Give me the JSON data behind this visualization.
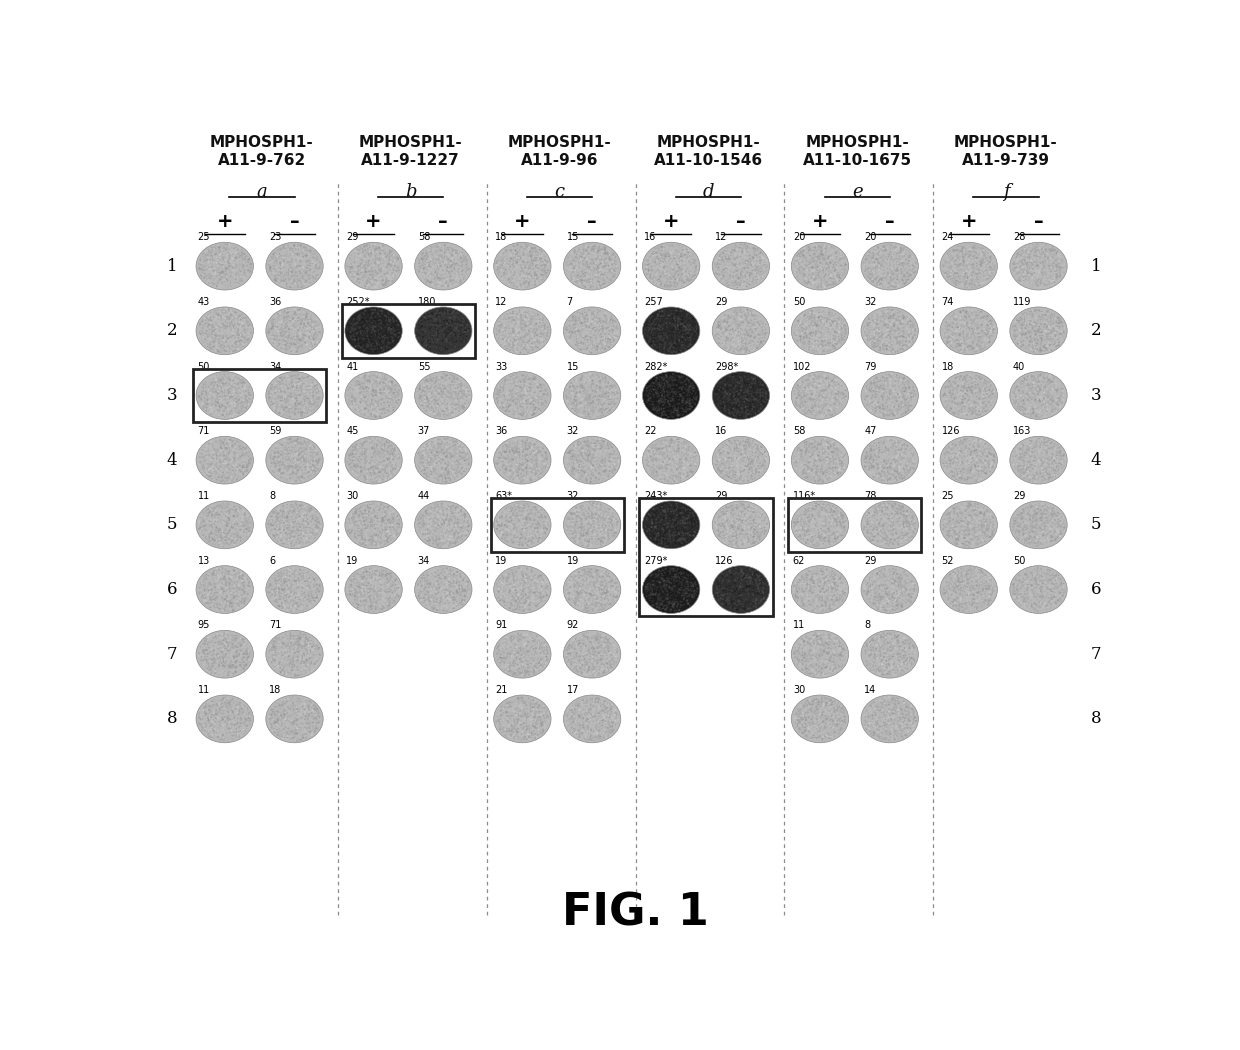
{
  "title": "FIG. 1",
  "columns": [
    {
      "label": "MPHOSPH1-\nA11-9-762",
      "sublabel": "a"
    },
    {
      "label": "MPHOSPH1-\nA11-9-1227",
      "sublabel": "b"
    },
    {
      "label": "MPHOSPH1-\nA11-9-96",
      "sublabel": "c"
    },
    {
      "label": "MPHOSPH1-\nA11-10-1546",
      "sublabel": "d"
    },
    {
      "label": "MPHOSPH1-\nA11-10-1675",
      "sublabel": "e"
    },
    {
      "label": "MPHOSPH1-\nA11-9-739",
      "sublabel": "f"
    }
  ],
  "rows": 8,
  "col_data": [
    {
      "col": 0,
      "values": [
        [
          25,
          23
        ],
        [
          43,
          36
        ],
        [
          50,
          34
        ],
        [
          71,
          59
        ],
        [
          11,
          8
        ],
        [
          13,
          6
        ],
        [
          95,
          71
        ],
        [
          11,
          18
        ]
      ],
      "dark_plus": [
        false,
        false,
        false,
        false,
        false,
        false,
        false,
        false
      ],
      "dark_minus": [
        false,
        false,
        false,
        false,
        false,
        false,
        false,
        false
      ],
      "boxes": [
        {
          "row": 2,
          "rows": 1
        }
      ],
      "asterisk_plus": [
        false,
        false,
        false,
        false,
        false,
        false,
        false,
        false
      ],
      "asterisk_minus": [
        false,
        false,
        false,
        false,
        false,
        false,
        false,
        false
      ]
    },
    {
      "col": 1,
      "values": [
        [
          29,
          58
        ],
        [
          252,
          180
        ],
        [
          41,
          55
        ],
        [
          45,
          37
        ],
        [
          30,
          44
        ],
        [
          19,
          34
        ],
        null,
        null
      ],
      "dark_plus": [
        false,
        true,
        false,
        false,
        false,
        false,
        false,
        false
      ],
      "dark_minus": [
        false,
        true,
        false,
        false,
        false,
        false,
        false,
        false
      ],
      "boxes": [
        {
          "row": 1,
          "rows": 1
        }
      ],
      "asterisk_plus": [
        false,
        true,
        false,
        false,
        false,
        false,
        false,
        false
      ],
      "asterisk_minus": [
        false,
        false,
        false,
        false,
        false,
        false,
        false,
        false
      ]
    },
    {
      "col": 2,
      "values": [
        [
          18,
          15
        ],
        [
          12,
          7
        ],
        [
          33,
          15
        ],
        [
          36,
          32
        ],
        [
          63,
          32
        ],
        [
          19,
          19
        ],
        [
          91,
          92
        ],
        [
          21,
          17
        ]
      ],
      "dark_plus": [
        false,
        false,
        false,
        false,
        false,
        false,
        false,
        false
      ],
      "dark_minus": [
        false,
        false,
        false,
        false,
        false,
        false,
        false,
        false
      ],
      "boxes": [
        {
          "row": 4,
          "rows": 1
        }
      ],
      "asterisk_plus": [
        false,
        false,
        false,
        false,
        true,
        false,
        false,
        false
      ],
      "asterisk_minus": [
        false,
        false,
        false,
        false,
        false,
        false,
        false,
        false
      ]
    },
    {
      "col": 3,
      "values": [
        [
          16,
          12
        ],
        [
          257,
          29
        ],
        [
          282,
          298
        ],
        [
          22,
          16
        ],
        [
          243,
          29
        ],
        [
          279,
          126
        ],
        null,
        null
      ],
      "dark_plus": [
        false,
        true,
        true,
        false,
        true,
        true,
        false,
        false
      ],
      "dark_minus": [
        false,
        false,
        true,
        false,
        false,
        true,
        false,
        false
      ],
      "boxes": [
        {
          "row": 4,
          "rows": 2
        }
      ],
      "asterisk_plus": [
        false,
        false,
        true,
        false,
        true,
        true,
        false,
        false
      ],
      "asterisk_minus": [
        false,
        false,
        true,
        false,
        false,
        false,
        false,
        false
      ]
    },
    {
      "col": 4,
      "values": [
        [
          20,
          20
        ],
        [
          50,
          32
        ],
        [
          102,
          79
        ],
        [
          58,
          47
        ],
        [
          116,
          78
        ],
        [
          62,
          29
        ],
        [
          11,
          8
        ],
        [
          30,
          14
        ]
      ],
      "dark_plus": [
        false,
        false,
        false,
        false,
        false,
        false,
        false,
        false
      ],
      "dark_minus": [
        false,
        false,
        false,
        false,
        false,
        false,
        false,
        false
      ],
      "boxes": [
        {
          "row": 4,
          "rows": 1
        }
      ],
      "asterisk_plus": [
        false,
        false,
        false,
        false,
        true,
        false,
        false,
        false
      ],
      "asterisk_minus": [
        false,
        false,
        false,
        false,
        false,
        false,
        false,
        false
      ]
    },
    {
      "col": 5,
      "values": [
        [
          24,
          28
        ],
        [
          74,
          119
        ],
        [
          18,
          40
        ],
        [
          126,
          163
        ],
        [
          25,
          29
        ],
        [
          52,
          50
        ],
        null,
        null
      ],
      "dark_plus": [
        false,
        false,
        false,
        false,
        false,
        false,
        false,
        false
      ],
      "dark_minus": [
        false,
        false,
        false,
        false,
        false,
        false,
        false,
        false
      ],
      "boxes": [],
      "asterisk_plus": [
        false,
        false,
        false,
        false,
        false,
        false,
        false,
        false
      ],
      "asterisk_minus": [
        false,
        false,
        false,
        false,
        false,
        false,
        false,
        false
      ]
    }
  ],
  "background_color": "#ffffff",
  "circle_normal_color": "#b8b8b8",
  "circle_normal_edge": "#888888",
  "circle_dark1_color": "#3a3a3a",
  "circle_dark2_color": "#282828",
  "circle_dark3_color": "#202020",
  "sep_color": "#666666",
  "box_color": "#222222",
  "text_color": "#111111",
  "title_fontsize": 32,
  "header_fontsize": 11,
  "sublabel_fontsize": 13,
  "pm_fontsize": 14,
  "num_fontsize": 7,
  "rownum_fontsize": 12
}
